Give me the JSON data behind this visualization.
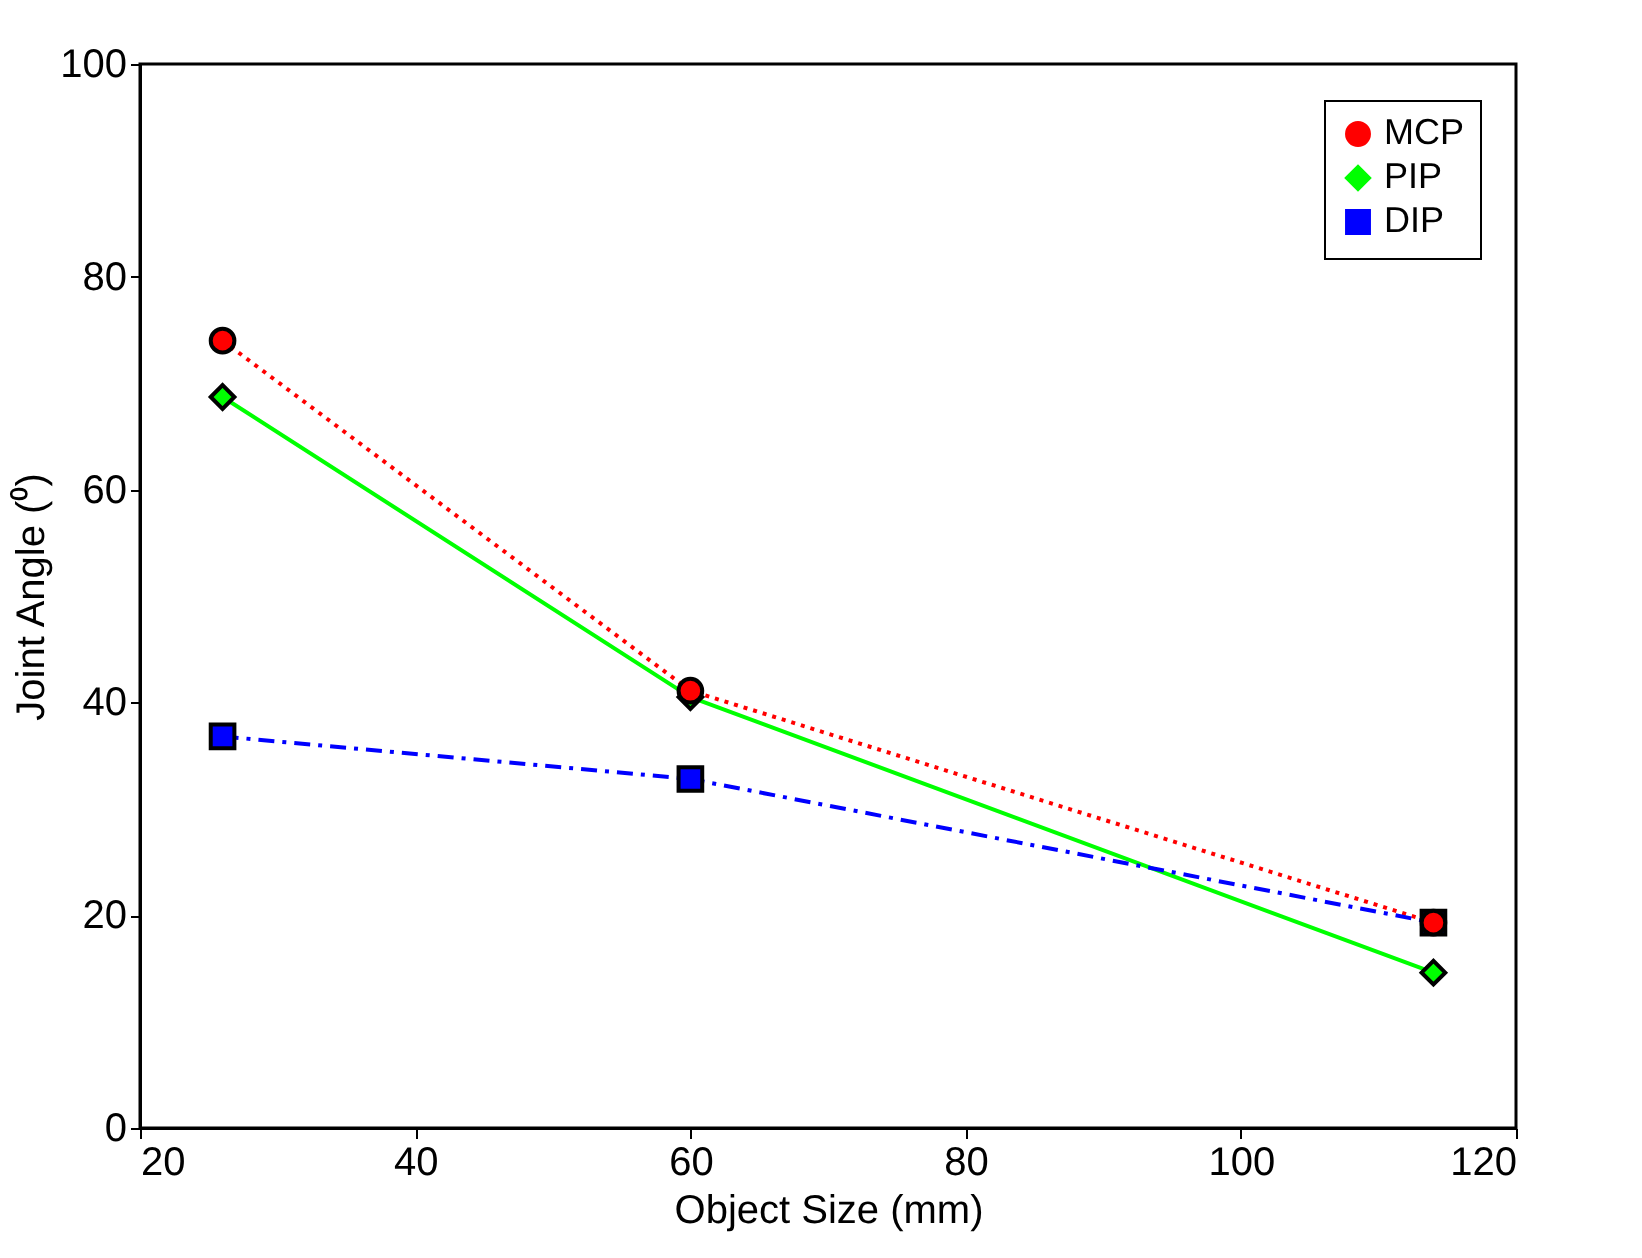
{
  "chart_data": {
    "type": "line",
    "xlabel": "Object Size (mm)",
    "ylabel": "Joint Angle (⁰)",
    "x": [
      26,
      60,
      114
    ],
    "series": [
      {
        "name": "MCP",
        "color": "#ff0000",
        "values": [
          74,
          41.1,
          19.3
        ],
        "marker": "circle",
        "line_style": "dotted"
      },
      {
        "name": "PIP",
        "color": "#00ff00",
        "values": [
          68.7,
          40.5,
          14.6
        ],
        "marker": "diamond",
        "line_style": "solid"
      },
      {
        "name": "DIP",
        "color": "#0000ff",
        "values": [
          36.8,
          32.8,
          19.3
        ],
        "marker": "square",
        "line_style": "dashdot"
      }
    ],
    "xlim": [
      20,
      120
    ],
    "xticks": [
      20,
      40,
      60,
      80,
      100,
      120
    ],
    "ylim": [
      0,
      100
    ],
    "yticks": [
      0,
      20,
      40,
      60,
      80,
      100
    ],
    "grid": false,
    "legend": "top right"
  }
}
